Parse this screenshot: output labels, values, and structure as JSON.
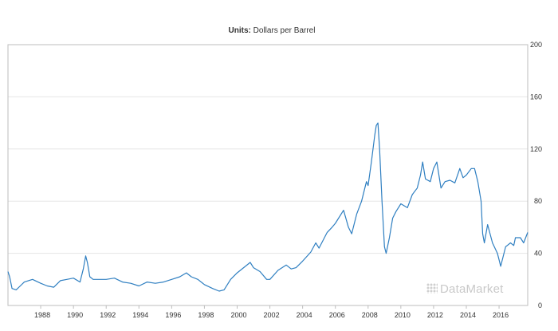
{
  "chart_data": {
    "type": "line",
    "title_label": "Units:",
    "title_value": "Dollars per Barrel",
    "xlabel": "",
    "ylabel": "",
    "xlim": [
      1986.0,
      2017.75
    ],
    "ylim": [
      0,
      200
    ],
    "yticks": [
      0,
      40,
      80,
      120,
      160,
      200
    ],
    "xticks": [
      "1988",
      "1990",
      "1992",
      "1994",
      "1996",
      "1998",
      "2000",
      "2002",
      "2004",
      "2006",
      "2008",
      "2010",
      "2012",
      "2014",
      "2016"
    ],
    "grid": true,
    "legend": "none",
    "series": [
      {
        "color": "#2f7fc1",
        "x": [
          1986.0,
          1986.1,
          1986.25,
          1986.5,
          1986.75,
          1987.0,
          1987.5,
          1988.0,
          1988.4,
          1988.8,
          1989.2,
          1989.6,
          1990.0,
          1990.4,
          1990.6,
          1990.75,
          1990.85,
          1991.0,
          1991.2,
          1991.5,
          1992.0,
          1992.5,
          1993.0,
          1993.5,
          1994.0,
          1994.5,
          1995.0,
          1995.5,
          1996.0,
          1996.5,
          1996.9,
          1997.2,
          1997.6,
          1998.0,
          1998.5,
          1998.9,
          1999.2,
          1999.6,
          2000.0,
          2000.5,
          2000.8,
          2001.0,
          2001.4,
          2001.8,
          2002.0,
          2002.5,
          2003.0,
          2003.3,
          2003.6,
          2004.0,
          2004.5,
          2004.8,
          2005.0,
          2005.5,
          2005.8,
          2006.0,
          2006.5,
          2006.8,
          2007.0,
          2007.3,
          2007.6,
          2007.9,
          2008.0,
          2008.2,
          2008.4,
          2008.5,
          2008.6,
          2008.7,
          2008.85,
          2009.0,
          2009.1,
          2009.3,
          2009.5,
          2009.7,
          2010.0,
          2010.4,
          2010.7,
          2011.0,
          2011.2,
          2011.33,
          2011.5,
          2011.8,
          2012.0,
          2012.2,
          2012.45,
          2012.7,
          2013.0,
          2013.3,
          2013.6,
          2013.8,
          2014.0,
          2014.3,
          2014.5,
          2014.7,
          2014.9,
          2015.0,
          2015.1,
          2015.3,
          2015.6,
          2015.9,
          2016.0,
          2016.1,
          2016.4,
          2016.7,
          2016.9,
          2017.0,
          2017.3,
          2017.5,
          2017.75
        ],
        "values": [
          26,
          22,
          13,
          12,
          15,
          18,
          20,
          17,
          15,
          14,
          19,
          20,
          21,
          18,
          28,
          38,
          33,
          22,
          20,
          20,
          20,
          21,
          18,
          17,
          15,
          18,
          17,
          18,
          20,
          22,
          25,
          22,
          20,
          16,
          13,
          11,
          12,
          20,
          25,
          30,
          33,
          29,
          26,
          20,
          20,
          27,
          31,
          28,
          29,
          34,
          41,
          48,
          44,
          56,
          60,
          63,
          73,
          60,
          55,
          70,
          80,
          95,
          92,
          110,
          130,
          138,
          140,
          120,
          80,
          45,
          40,
          52,
          67,
          72,
          78,
          75,
          85,
          90,
          100,
          110,
          97,
          95,
          105,
          110,
          90,
          95,
          96,
          94,
          105,
          98,
          100,
          105,
          105,
          95,
          80,
          55,
          48,
          62,
          48,
          40,
          35,
          30,
          45,
          48,
          46,
          52,
          52,
          48,
          56
        ]
      }
    ]
  },
  "watermark": "DataMarket"
}
